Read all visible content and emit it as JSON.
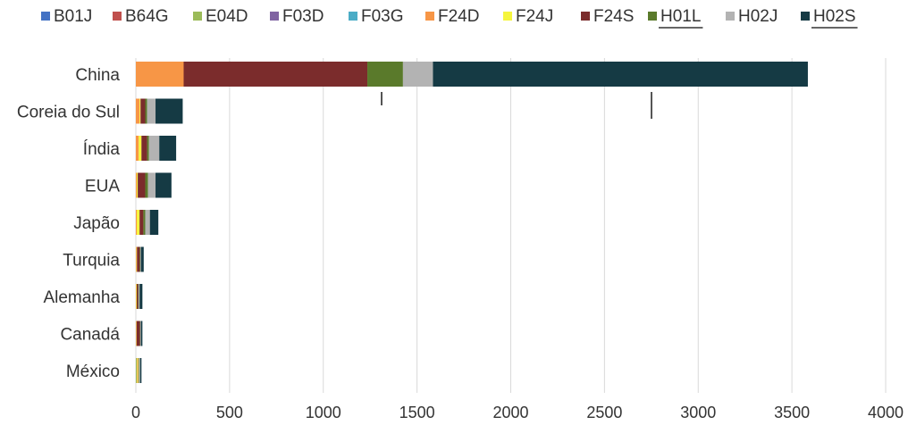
{
  "chart_data": {
    "type": "bar",
    "orientation": "horizontal",
    "stacked": true,
    "categories": [
      "China",
      "Coreia do Sul",
      "Índia",
      "EUA",
      "Japão",
      "Turquia",
      "Alemanha",
      "Canadá",
      "México"
    ],
    "series": [
      {
        "name": "B01J",
        "color": "#4472c4",
        "values": [
          0,
          0,
          0,
          0,
          0,
          0,
          0,
          0,
          0
        ]
      },
      {
        "name": "B64G",
        "color": "#c0504d",
        "values": [
          0,
          0,
          0,
          0,
          0,
          0,
          0,
          0,
          0
        ]
      },
      {
        "name": "E04D",
        "color": "#9bbb59",
        "values": [
          0,
          0,
          0,
          0,
          0,
          0,
          0,
          0,
          5
        ]
      },
      {
        "name": "F03D",
        "color": "#8064a2",
        "values": [
          0,
          0,
          0,
          0,
          0,
          0,
          0,
          0,
          0
        ]
      },
      {
        "name": "F03G",
        "color": "#4bacc6",
        "values": [
          0,
          0,
          0,
          0,
          0,
          0,
          0,
          0,
          0
        ]
      },
      {
        "name": "F24D",
        "color": "#f79646",
        "values": [
          255,
          20,
          15,
          5,
          5,
          3,
          2,
          2,
          3
        ]
      },
      {
        "name": "F24J",
        "color": "#f5f53d",
        "values": [
          0,
          5,
          15,
          5,
          15,
          3,
          3,
          2,
          5
        ]
      },
      {
        "name": "F24S",
        "color": "#7b2c2c",
        "values": [
          980,
          25,
          30,
          40,
          20,
          15,
          7,
          18,
          2
        ]
      },
      {
        "name": "H01L",
        "color": "#5a7a2b",
        "values": [
          190,
          10,
          10,
          15,
          10,
          3,
          3,
          2,
          3
        ]
      },
      {
        "name": "H02J",
        "color": "#b3b3b3",
        "values": [
          160,
          45,
          55,
          40,
          25,
          3,
          5,
          3,
          5
        ]
      },
      {
        "name": "H02S",
        "color": "#153a44",
        "values": [
          2000,
          145,
          90,
          85,
          45,
          15,
          15,
          8,
          7
        ]
      }
    ],
    "xlim": [
      0,
      4000
    ],
    "xticks": [
      0,
      500,
      1000,
      1500,
      2000,
      2500,
      3000,
      3500,
      4000
    ],
    "grid": true,
    "legend_position": "top"
  }
}
